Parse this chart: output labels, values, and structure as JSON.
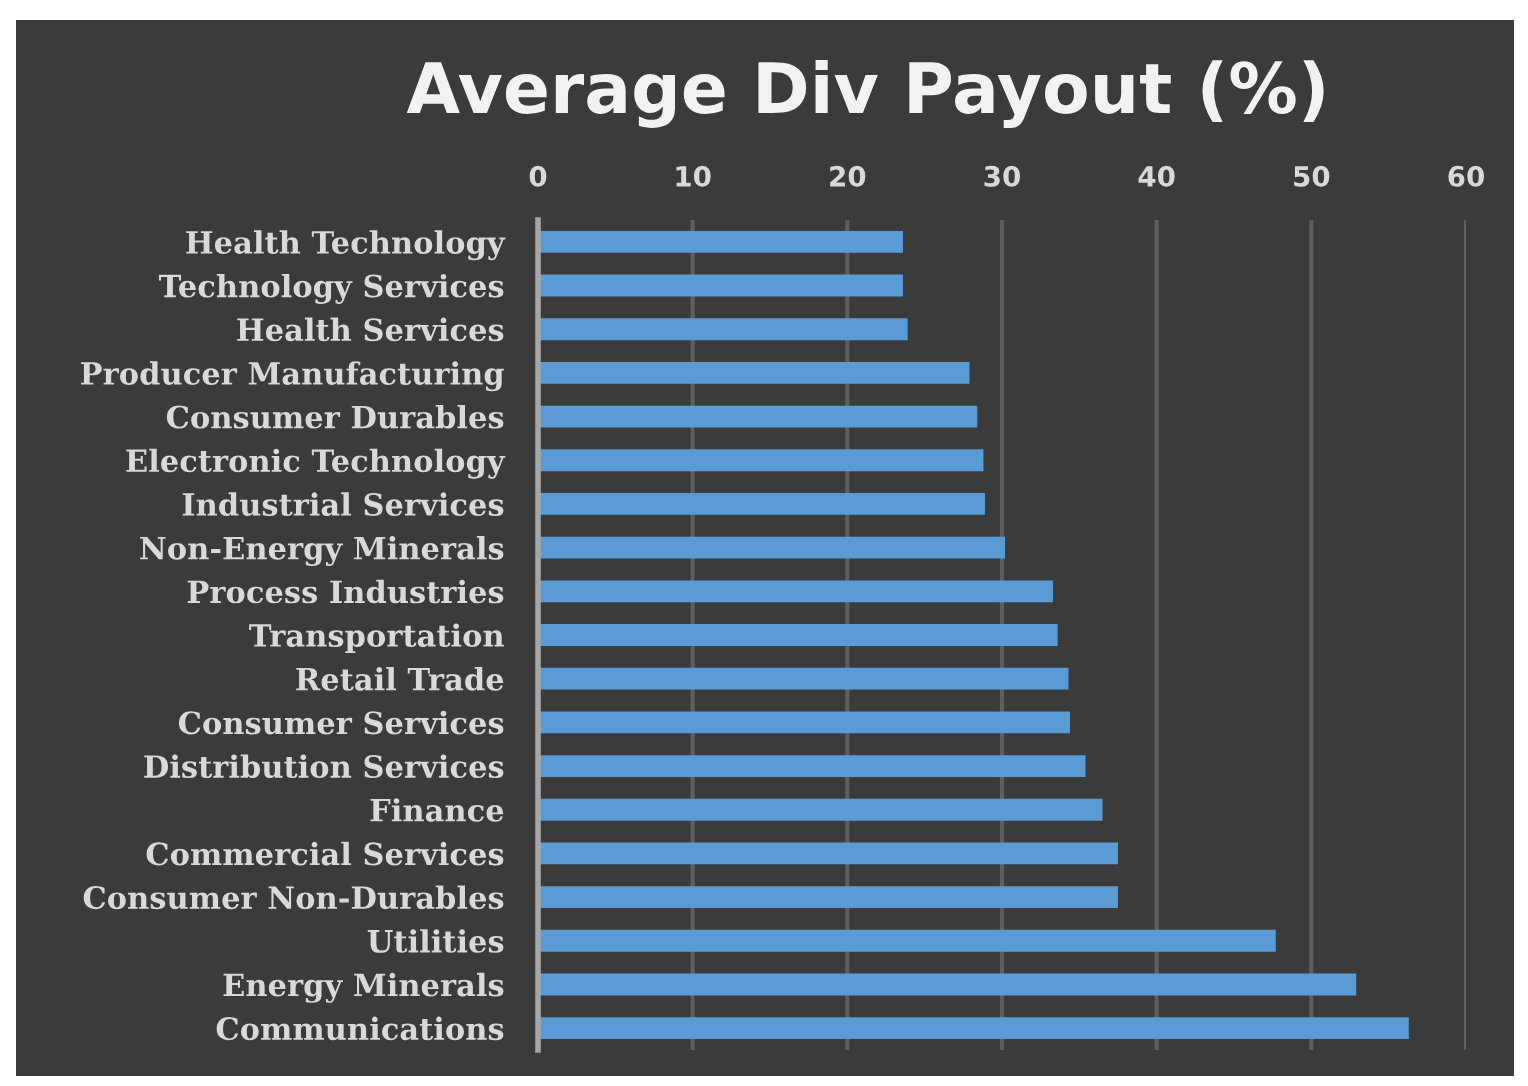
{
  "chart_data": {
    "type": "bar",
    "orientation": "horizontal",
    "title": "Average Div Payout (%)",
    "categories": [
      "Health Technology",
      "Technology Services",
      "Health Services",
      "Producer Manufacturing",
      "Consumer Durables",
      "Electronic Technology",
      "Industrial Services",
      "Non-Energy Minerals",
      "Process Industries",
      "Transportation",
      "Retail Trade",
      "Consumer Services",
      "Distribution Services",
      "Finance",
      "Commercial Services",
      "Consumer Non-Durables",
      "Utilities",
      "Energy Minerals",
      "Communications"
    ],
    "values": [
      23.6,
      23.6,
      23.9,
      27.9,
      28.4,
      28.8,
      28.9,
      30.2,
      33.3,
      33.6,
      34.3,
      34.4,
      35.4,
      36.5,
      37.5,
      37.5,
      47.7,
      52.9,
      56.3
    ],
    "color": "#5b9bd5",
    "xlim": [
      0,
      60
    ],
    "xticks": [
      0,
      10,
      20,
      30,
      40,
      50,
      60
    ],
    "grid": "x"
  }
}
